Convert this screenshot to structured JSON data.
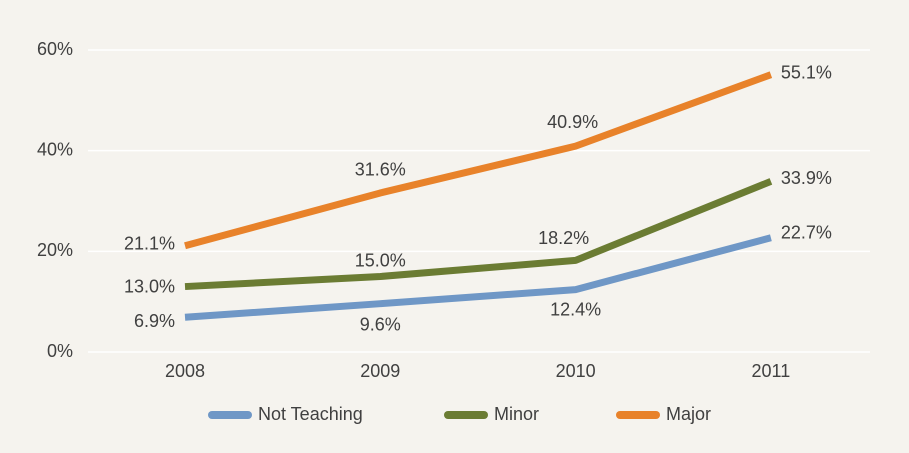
{
  "chart_data": {
    "type": "line",
    "categories": [
      "2008",
      "2009",
      "2010",
      "2011"
    ],
    "series": [
      {
        "name": "Not Teaching",
        "color": "#6f97c6",
        "values": [
          6.9,
          9.6,
          12.4,
          22.7
        ],
        "value_labels": [
          "6.9%",
          "9.6%",
          "12.4%",
          "22.7%"
        ]
      },
      {
        "name": "Minor",
        "color": "#6b7c33",
        "values": [
          13.0,
          15.0,
          18.2,
          33.9
        ],
        "value_labels": [
          "13.0%",
          "15.0%",
          "18.2%",
          "33.9%"
        ]
      },
      {
        "name": "Major",
        "color": "#e8822a",
        "values": [
          21.1,
          31.6,
          40.9,
          55.1
        ],
        "value_labels": [
          "21.1%",
          "31.6%",
          "40.9%",
          "55.1%"
        ]
      }
    ],
    "ylim": [
      0,
      60
    ],
    "yticks": [
      {
        "value": 0,
        "label": "0%"
      },
      {
        "value": 20,
        "label": "20%"
      },
      {
        "value": 40,
        "label": "40%"
      },
      {
        "value": 60,
        "label": "60%"
      }
    ],
    "grid": true,
    "legend": "bottom"
  }
}
